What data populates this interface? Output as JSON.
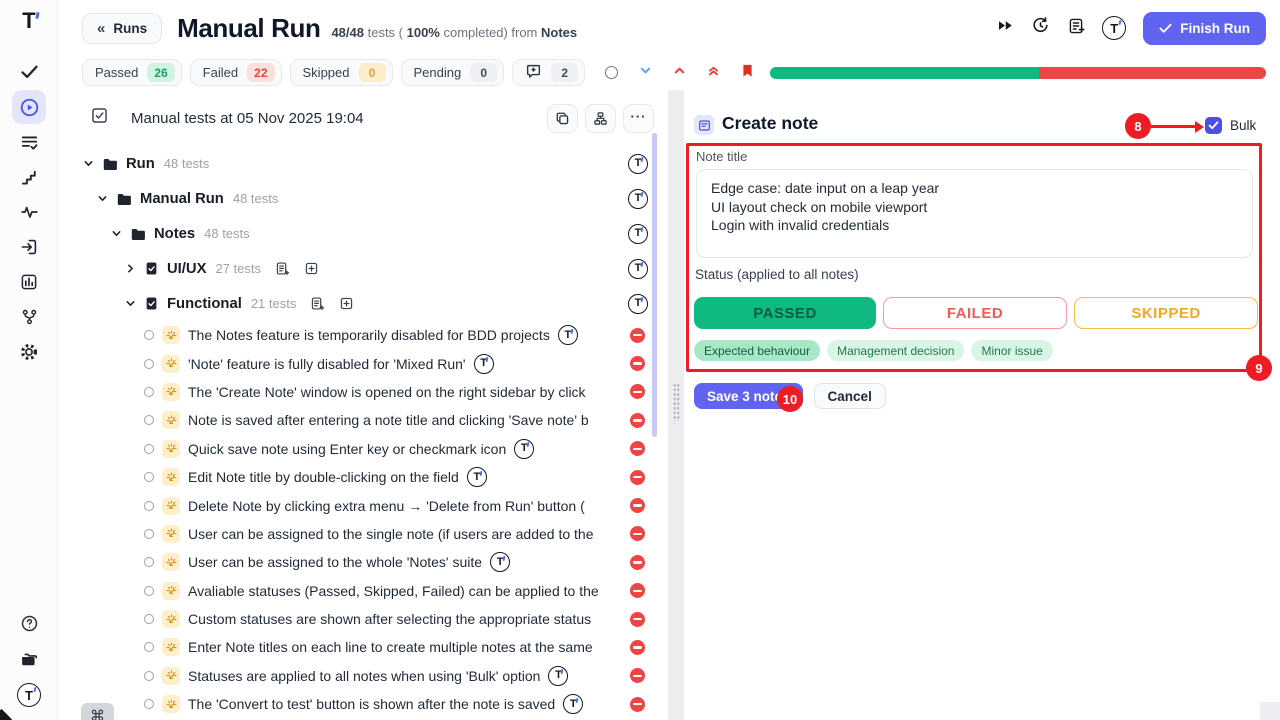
{
  "app": {
    "accent_color": "#6366f1",
    "annotation_color": "#ee1c23"
  },
  "header": {
    "back_button": "Runs",
    "title": "Manual Run",
    "stats_ratio": "48/48",
    "stats_mid1": " tests ( ",
    "stats_pct": "100%",
    "stats_mid2": " completed) from ",
    "stats_source": "Notes",
    "finish_button": "Finish Run",
    "comment_badge": "2"
  },
  "filters": {
    "passed_label": "Passed",
    "passed_count": "26",
    "failed_label": "Failed",
    "failed_count": "22",
    "skipped_label": "Skipped",
    "skipped_count": "0",
    "pending_label": "Pending",
    "pending_count": "0"
  },
  "progress": {
    "passed_pct": 54.2,
    "failed_pct": 45.8,
    "passed_color": "#10b981",
    "failed_color": "#ef4444"
  },
  "tree": {
    "toolbar_title": "Manual tests at 05 Nov 2025 19:04",
    "nodes": [
      {
        "kind": "folder",
        "level": 0,
        "expanded": true,
        "name": "Run",
        "count": "48 tests",
        "logo": true
      },
      {
        "kind": "folder",
        "level": 1,
        "expanded": true,
        "name": "Manual Run",
        "count": "48 tests",
        "logo": true
      },
      {
        "kind": "folder",
        "level": 2,
        "expanded": true,
        "name": "Notes",
        "count": "48 tests",
        "logo": true
      },
      {
        "kind": "suite",
        "level": 3,
        "expanded": false,
        "name": "UI/UX",
        "count": "27 tests",
        "logo": true
      },
      {
        "kind": "suite",
        "level": 3,
        "expanded": true,
        "name": "Functional",
        "count": "21 tests",
        "logo": true
      }
    ],
    "tests": [
      {
        "title": "The Notes feature is temporarily disabled for BDD projects",
        "logo": true
      },
      {
        "title": "'Note' feature is fully disabled for 'Mixed Run'",
        "logo": true
      },
      {
        "title": "The 'Create Note' window is opened on the right sidebar by click",
        "logo": false
      },
      {
        "title": "Note is saved after entering a note title and clicking 'Save note' b",
        "logo": false
      },
      {
        "title": "Quick save note using Enter key or checkmark icon",
        "logo": true
      },
      {
        "title": "Edit Note title by double-clicking on the field",
        "logo": true
      },
      {
        "title": "Delete Note by clicking extra menu → 'Delete from Run' button (",
        "logo": false
      },
      {
        "title": "User can be assigned to the single note (if users are added to the",
        "logo": false
      },
      {
        "title": "User can be assigned to the whole 'Notes' suite",
        "logo": true
      },
      {
        "title": "Avaliable statuses (Passed, Skipped, Failed) can be applied to the",
        "logo": false
      },
      {
        "title": "Custom statuses are shown after selecting the appropriate status",
        "logo": false
      },
      {
        "title": "Enter Note titles on each line to create multiple notes at the same",
        "logo": false
      },
      {
        "title": "Statuses are applied to all notes when using 'Bulk' option",
        "logo": true
      },
      {
        "title": "The 'Convert to test' button is shown after the note is saved",
        "logo": true
      }
    ]
  },
  "note_panel": {
    "title": "Create note",
    "bulk_label": "Bulk",
    "bulk_checked": true,
    "note_title_label": "Note title",
    "note_lines": [
      "Edge case: date input on a leap year",
      "UI layout check on mobile viewport",
      "Login with invalid credentials"
    ],
    "status_label": "Status (applied to all notes)",
    "status_options": [
      {
        "label": "PASSED",
        "selected": true,
        "color": "#10b981"
      },
      {
        "label": "FAILED",
        "selected": false,
        "color": "#ef4444"
      },
      {
        "label": "SKIPPED",
        "selected": false,
        "color": "#f59e0b"
      }
    ],
    "tags": [
      {
        "label": "Expected behaviour",
        "selected": true
      },
      {
        "label": "Management decision",
        "selected": false
      },
      {
        "label": "Minor issue",
        "selected": false
      }
    ],
    "save_button": "Save 3 notes",
    "cancel_button": "Cancel"
  },
  "annotations": {
    "bulk": "8",
    "form": "9",
    "save": "10"
  },
  "shortcut_key": "⌘"
}
